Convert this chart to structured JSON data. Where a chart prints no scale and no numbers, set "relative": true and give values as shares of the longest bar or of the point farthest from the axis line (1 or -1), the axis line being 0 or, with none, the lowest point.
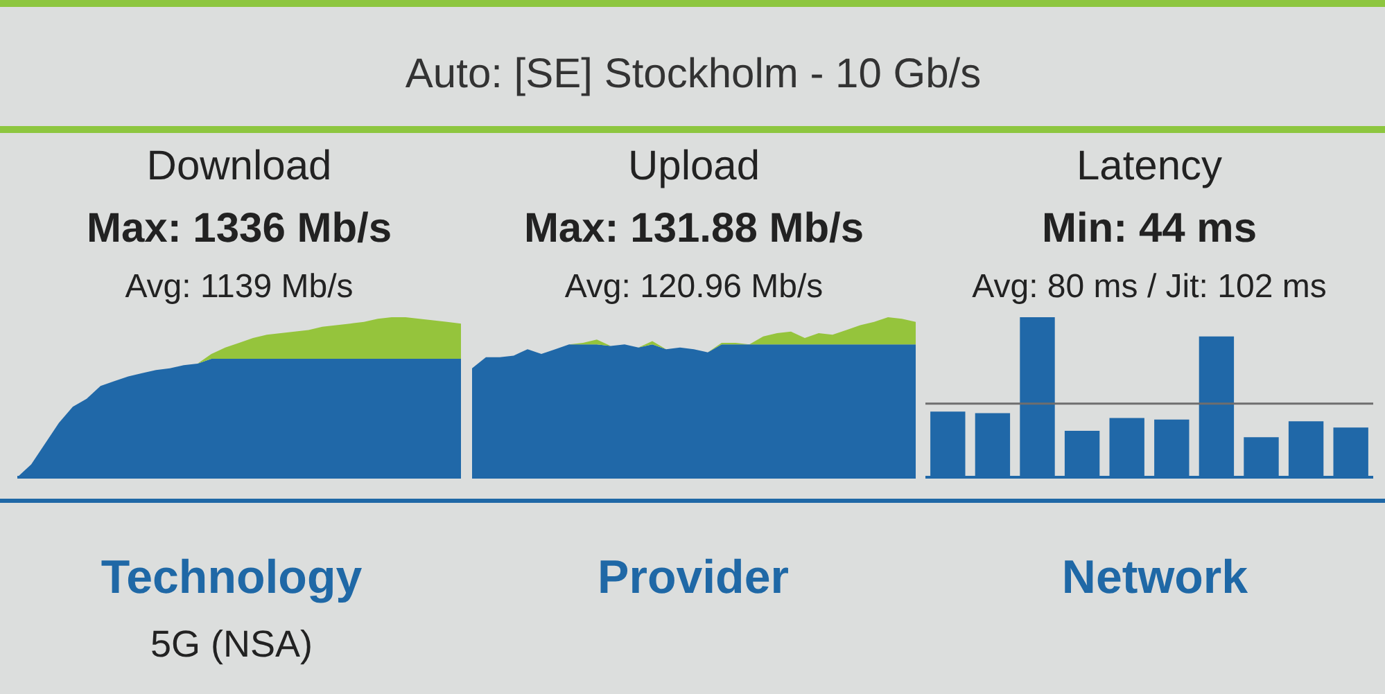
{
  "chart_data": [
    {
      "type": "other",
      "title": "Auto: [SE] Stockholm - 10 Gb/s"
    },
    {
      "type": "area",
      "title": "Download",
      "subtitle": "Max: 1336 Mb/s",
      "annotations": [
        "Avg: 1139 Mb/s"
      ],
      "relative": true,
      "stacked": true,
      "categories": [
        null,
        null,
        null,
        null,
        null,
        null,
        null,
        null,
        null,
        null,
        null,
        null,
        null,
        null,
        null,
        null,
        null,
        null,
        null,
        null,
        null,
        null,
        null,
        null,
        null,
        null,
        null,
        null,
        null,
        null,
        null,
        null,
        null
      ],
      "series": [
        {
          "color": "#2068a8",
          "values": [
            0,
            0.08,
            0.21,
            0.34,
            0.44,
            0.49,
            0.57,
            0.6,
            0.63,
            0.65,
            0.67,
            0.68,
            0.7,
            0.71,
            0.74,
            0.74,
            0.74,
            0.74,
            0.74,
            0.74,
            0.74,
            0.74,
            0.74,
            0.74,
            0.74,
            0.74,
            0.74,
            0.74,
            0.74,
            0.74,
            0.74,
            0.74,
            0.74
          ]
        },
        {
          "color": "#95c43c",
          "values": [
            0,
            0,
            0,
            0,
            0,
            0,
            0,
            0,
            0,
            0,
            0,
            0,
            0,
            0,
            0.03,
            0.07,
            0.1,
            0.13,
            0.15,
            0.16,
            0.17,
            0.18,
            0.2,
            0.21,
            0.22,
            0.23,
            0.25,
            0.26,
            0.26,
            0.25,
            0.24,
            0.23,
            0.22
          ]
        }
      ]
    },
    {
      "type": "area",
      "title": "Upload",
      "subtitle": "Max: 131.88 Mb/s",
      "annotations": [
        "Avg: 120.96 Mb/s"
      ],
      "relative": true,
      "stacked": true,
      "categories": [
        null,
        null,
        null,
        null,
        null,
        null,
        null,
        null,
        null,
        null,
        null,
        null,
        null,
        null,
        null,
        null,
        null,
        null,
        null,
        null,
        null,
        null,
        null,
        null,
        null,
        null,
        null,
        null,
        null,
        null,
        null,
        null,
        null
      ],
      "series": [
        {
          "color": "#2068a8",
          "values": [
            0.68,
            0.75,
            0.75,
            0.76,
            0.8,
            0.77,
            0.8,
            0.83,
            0.83,
            0.83,
            0.82,
            0.83,
            0.81,
            0.83,
            0.8,
            0.81,
            0.8,
            0.78,
            0.83,
            0.83,
            0.83,
            0.83,
            0.83,
            0.83,
            0.83,
            0.83,
            0.83,
            0.83,
            0.83,
            0.83,
            0.83,
            0.83,
            0.83
          ]
        },
        {
          "color": "#95c43c",
          "values": [
            0,
            0,
            0,
            0,
            0,
            0,
            0,
            0,
            0.01,
            0.03,
            0,
            0,
            0,
            0.02,
            0,
            0,
            0,
            0,
            0.01,
            0.01,
            0,
            0.05,
            0.07,
            0.08,
            0.04,
            0.07,
            0.06,
            0.09,
            0.12,
            0.14,
            0.17,
            0.16,
            0.14
          ]
        }
      ]
    },
    {
      "type": "bar",
      "title": "Latency",
      "subtitle": "Min: 44 ms",
      "annotations": [
        "Avg: 80 ms / Jit: 102 ms"
      ],
      "relative": true,
      "categories": [
        null,
        null,
        null,
        null,
        null,
        null,
        null,
        null,
        null,
        null
      ],
      "color": "#2068a8",
      "values": [
        0.41,
        0.4,
        1,
        0.29,
        0.37,
        0.36,
        0.88,
        0.25,
        0.35,
        0.31
      ],
      "ref_lines": [
        {
          "axis": "y",
          "value": 0.46,
          "color": "#6e6e6e"
        }
      ]
    },
    {
      "type": "other",
      "categories": [
        "Technology",
        "Provider",
        "Network"
      ],
      "annotations": [
        "5G (NSA)"
      ]
    }
  ]
}
